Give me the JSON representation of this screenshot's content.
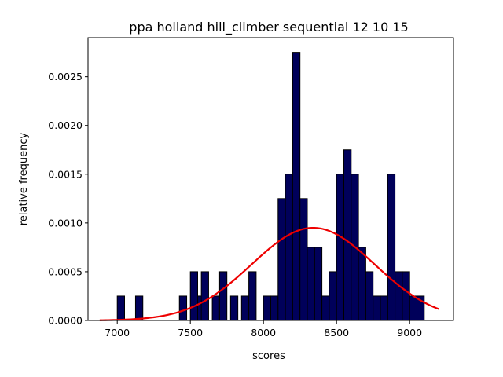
{
  "chart_data": {
    "type": "bar",
    "title": "ppa holland hill_climber sequential 12 10 15",
    "xlabel": "scores",
    "ylabel": "relative frequency",
    "xlim": [
      6800,
      9300
    ],
    "ylim": [
      0,
      0.0029
    ],
    "xticks": [
      7000,
      7500,
      8000,
      8500,
      9000
    ],
    "xtick_labels": [
      "7000",
      "7500",
      "8000",
      "8500",
      "9000"
    ],
    "yticks": [
      0,
      0.0005,
      0.001,
      0.0015,
      0.002,
      0.0025
    ],
    "ytick_labels": [
      "0.0000",
      "0.0005",
      "0.0010",
      "0.0015",
      "0.0020",
      "0.0025"
    ],
    "grid": false,
    "bin_width": 50,
    "bins": [
      {
        "x0": 7000,
        "value": 0.00025
      },
      {
        "x0": 7125,
        "value": 0.00025
      },
      {
        "x0": 7425,
        "value": 0.00025
      },
      {
        "x0": 7500,
        "value": 0.0005
      },
      {
        "x0": 7550,
        "value": 0.00025
      },
      {
        "x0": 7575,
        "value": 0.0005
      },
      {
        "x0": 7650,
        "value": 0.00025
      },
      {
        "x0": 7700,
        "value": 0.0005
      },
      {
        "x0": 7775,
        "value": 0.00025
      },
      {
        "x0": 7850,
        "value": 0.00025
      },
      {
        "x0": 7900,
        "value": 0.0005
      },
      {
        "x0": 7950,
        "value": 0.0
      },
      {
        "x0": 8000,
        "value": 0.00025
      },
      {
        "x0": 8050,
        "value": 0.00025
      },
      {
        "x0": 8100,
        "value": 0.00125
      },
      {
        "x0": 8150,
        "value": 0.0015
      },
      {
        "x0": 8200,
        "value": 0.00275
      },
      {
        "x0": 8250,
        "value": 0.00125
      },
      {
        "x0": 8300,
        "value": 0.00075
      },
      {
        "x0": 8350,
        "value": 0.00075
      },
      {
        "x0": 8400,
        "value": 0.00025
      },
      {
        "x0": 8450,
        "value": 0.0005
      },
      {
        "x0": 8500,
        "value": 0.0015
      },
      {
        "x0": 8550,
        "value": 0.00175
      },
      {
        "x0": 8600,
        "value": 0.0015
      },
      {
        "x0": 8650,
        "value": 0.00075
      },
      {
        "x0": 8700,
        "value": 0.0005
      },
      {
        "x0": 8750,
        "value": 0.00025
      },
      {
        "x0": 8800,
        "value": 0.00025
      },
      {
        "x0": 8850,
        "value": 0.0015
      },
      {
        "x0": 8900,
        "value": 0.0005
      },
      {
        "x0": 8950,
        "value": 0.0005
      },
      {
        "x0": 9000,
        "value": 0.00025
      },
      {
        "x0": 9050,
        "value": 0.00025
      }
    ],
    "fit_curve": {
      "type": "normal",
      "mean": 8340,
      "std": 420,
      "peak": 0.00095,
      "x_range": [
        6880,
        9200
      ]
    },
    "colors": {
      "bar_fill": "#00005a",
      "bar_edge": "#000000",
      "curve": "#ee0000",
      "axes": "#000000",
      "background": "#ffffff"
    }
  }
}
